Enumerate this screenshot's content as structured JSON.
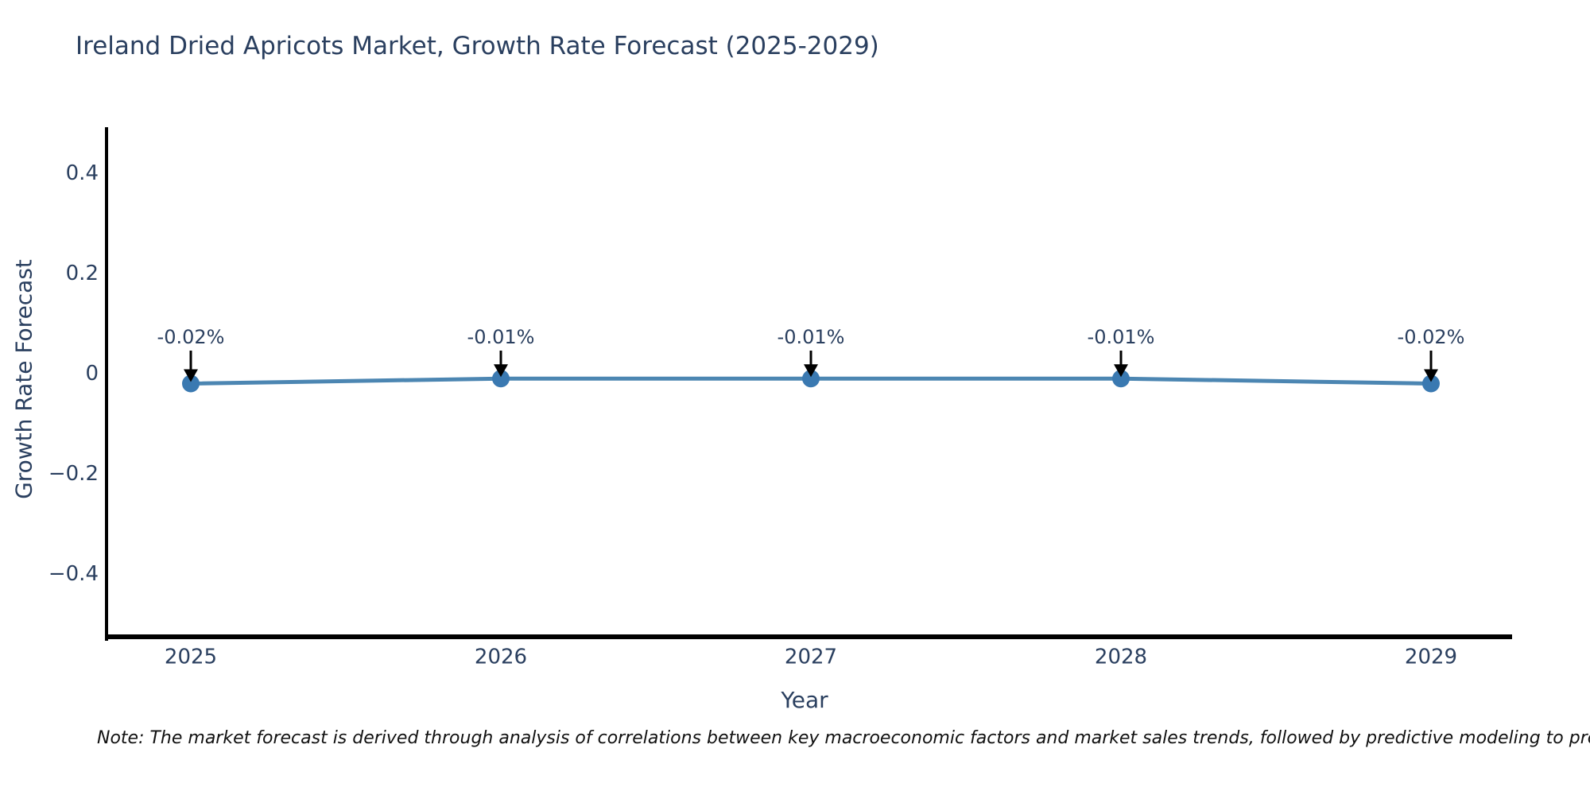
{
  "header": {
    "title": "Ireland Dried Apricots Market, Growth Rate Forecast (2025-2029)"
  },
  "colors": {
    "title_text": "#2a3f5f",
    "tick_text": "#2a3f5f",
    "annotation_text": "#2a3f5f",
    "axis_spine": "#000000",
    "arrow": "#000000",
    "line": "#4c86b2",
    "marker": "#3a79b1",
    "note_text": "#111111",
    "background": "#ffffff"
  },
  "chart_data": {
    "type": "line",
    "title": "Ireland Dried Apricots Market, Growth Rate Forecast (2025-2029)",
    "x": [
      2025,
      2026,
      2027,
      2028,
      2029
    ],
    "y": [
      -0.02,
      -0.01,
      -0.01,
      -0.01,
      -0.02
    ],
    "series": [
      {
        "name": "Growth Rate Forecast",
        "values": [
          -0.02,
          -0.01,
          -0.01,
          -0.01,
          -0.02
        ]
      }
    ],
    "annotations": [
      "-0.02%",
      "-0.01%",
      "-0.01%",
      "-0.01%",
      "-0.02%"
    ],
    "xlabel": "Year",
    "ylabel": "Growth Rate Forecast",
    "yticks": [
      0.4,
      0.2,
      0,
      -0.2,
      -0.4
    ],
    "ytick_labels": [
      "0.4",
      "0.2",
      "0",
      "−0.2",
      "−0.4"
    ],
    "xtick_labels": [
      "2025",
      "2026",
      "2027",
      "2028",
      "2029"
    ],
    "ylim": [
      -0.524,
      0.492
    ],
    "grid": false,
    "legend_position": "none",
    "marker_style": "circle",
    "arrow_style": "down-arrow-to-point"
  },
  "footer": {
    "note": "Note: The market forecast is derived through analysis of correlations between key macroeconomic factors and market sales trends, followed by predictive modeling to project future sa"
  }
}
